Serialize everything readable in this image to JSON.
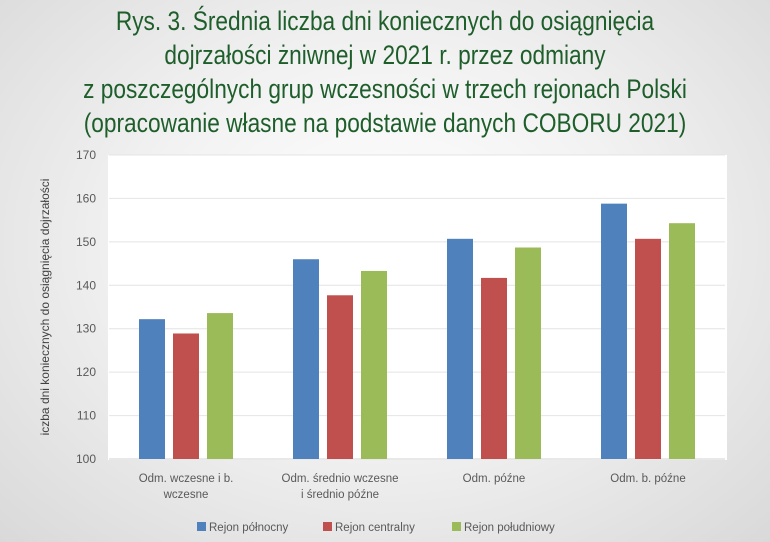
{
  "title_lines": [
    "Rys. 3. Średnia liczba dni koniecznych do osiągnięcia",
    "dojrzałości żniwnej w 2021 r. przez odmiany",
    "z poszczególnych grup wczesności w trzech rejonach Polski",
    "(opracowanie własne na podstawie danych COBORU 2021)"
  ],
  "chart_data": {
    "type": "bar",
    "title": "Rys. 3. Średnia liczba dni koniecznych do osiągnięcia dojrzałości żniwnej w 2021 r. przez odmiany z poszczególnych grup wczesności w trzech rejonach Polski (opracowanie własne na podstawie danych COBORU 2021)",
    "categories": [
      [
        "Odm. wczesne i b.",
        "wczesne"
      ],
      [
        "Odm. średnio wczesne",
        "i średnio późne"
      ],
      [
        "Odm. późne"
      ],
      [
        "Odm. b. późne"
      ]
    ],
    "series": [
      {
        "name": "Rejon północny",
        "color": "#4f81bd",
        "values": [
          132.2,
          146.0,
          150.7,
          158.8
        ]
      },
      {
        "name": "Rejon centralny",
        "color": "#c0504d",
        "values": [
          128.9,
          137.7,
          141.7,
          150.7
        ]
      },
      {
        "name": "Rejon południowy",
        "color": "#9bbb59",
        "values": [
          133.6,
          143.3,
          148.7,
          154.3
        ]
      }
    ],
    "xlabel": "",
    "ylabel": "iczba dni koniecznych do osiągnięcia dojrzałości",
    "ylim": [
      100,
      170
    ],
    "yticks": [
      100,
      110,
      120,
      130,
      140,
      150,
      160,
      170
    ],
    "grid": true,
    "legend": "bottom"
  }
}
